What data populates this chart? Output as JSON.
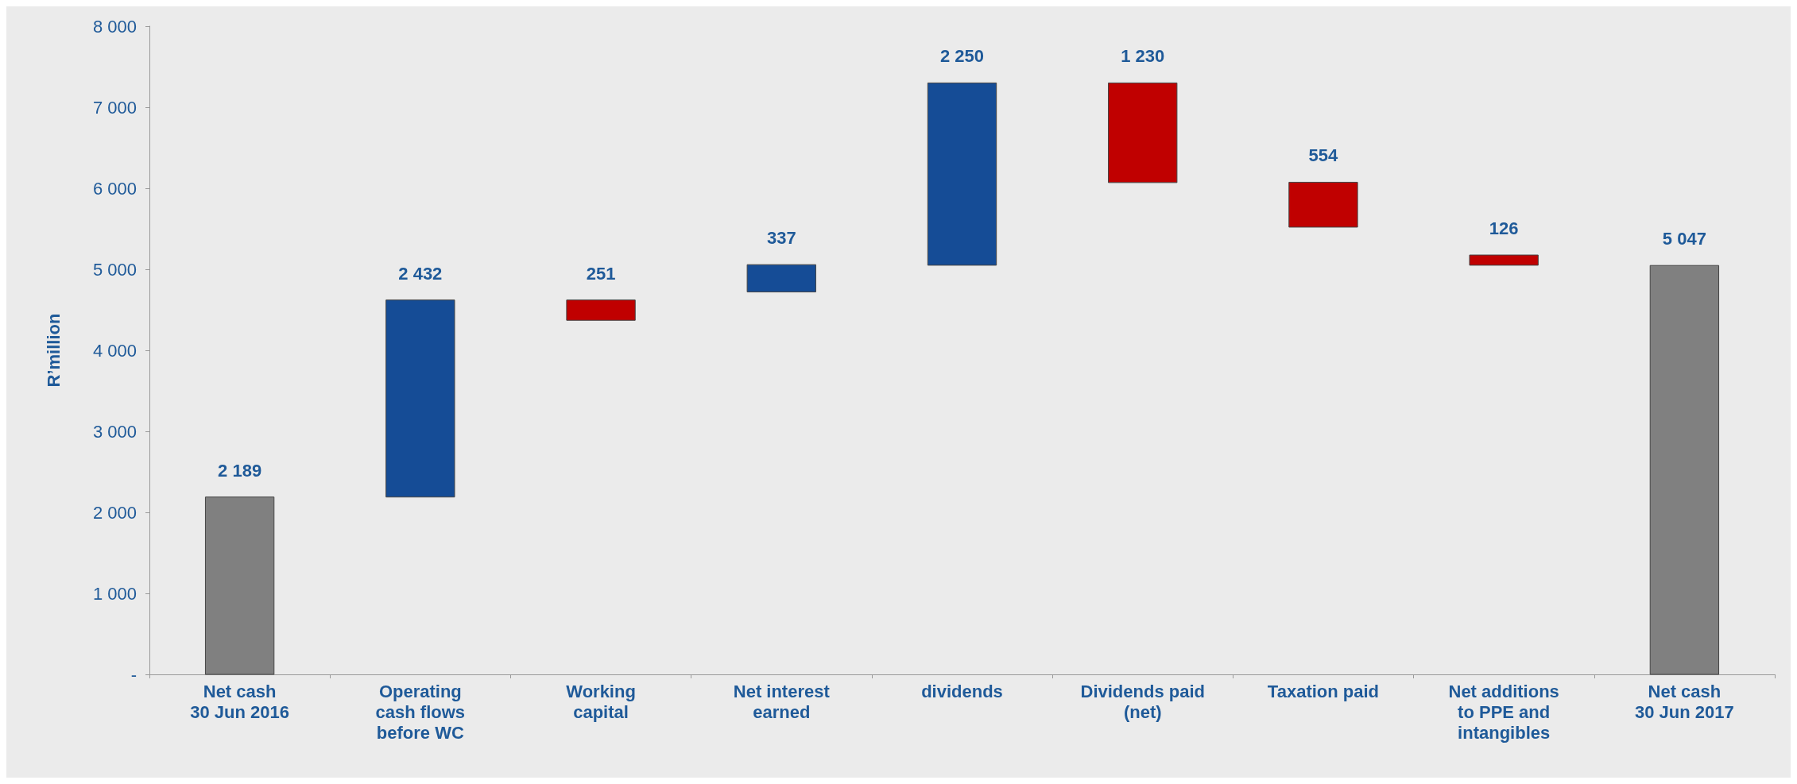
{
  "chart_data": {
    "type": "bar",
    "ylabel": "R’million",
    "categories": [
      "Net cash\n30 Jun 2016",
      "Operating\ncash flows\nbefore WC",
      "Working\ncapital",
      "Net interest\nearned",
      "dividends",
      "Dividends paid\n(net)",
      "Taxation paid",
      "Net additions\nto PPE and\nintangibles",
      "Net cash\n30 Jun 2017"
    ],
    "values": [
      2189,
      2432,
      251,
      337,
      2250,
      1230,
      554,
      126,
      5047
    ],
    "base": [
      0,
      2189,
      4370,
      4720,
      5050,
      6070,
      5520,
      5050,
      0
    ],
    "colors": [
      "#808080",
      "#154c96",
      "#c00000",
      "#154c96",
      "#154c96",
      "#c00000",
      "#c00000",
      "#c00000",
      "#808080"
    ],
    "value_labels": [
      "2 189",
      "2 432",
      "251",
      "337",
      "2 250",
      "1 230",
      "554",
      "126",
      "5 047"
    ],
    "ylim": [
      0,
      8000
    ],
    "yticks": [
      {
        "value": 0,
        "label": "-"
      },
      {
        "value": 1000,
        "label": "1 000"
      },
      {
        "value": 2000,
        "label": "2 000"
      },
      {
        "value": 3000,
        "label": "3 000"
      },
      {
        "value": 4000,
        "label": "4 000"
      },
      {
        "value": 5000,
        "label": "5 000"
      },
      {
        "value": 6000,
        "label": "6 000"
      },
      {
        "value": 7000,
        "label": "7 000"
      },
      {
        "value": 8000,
        "label": "8 000"
      }
    ],
    "grid": false
  }
}
